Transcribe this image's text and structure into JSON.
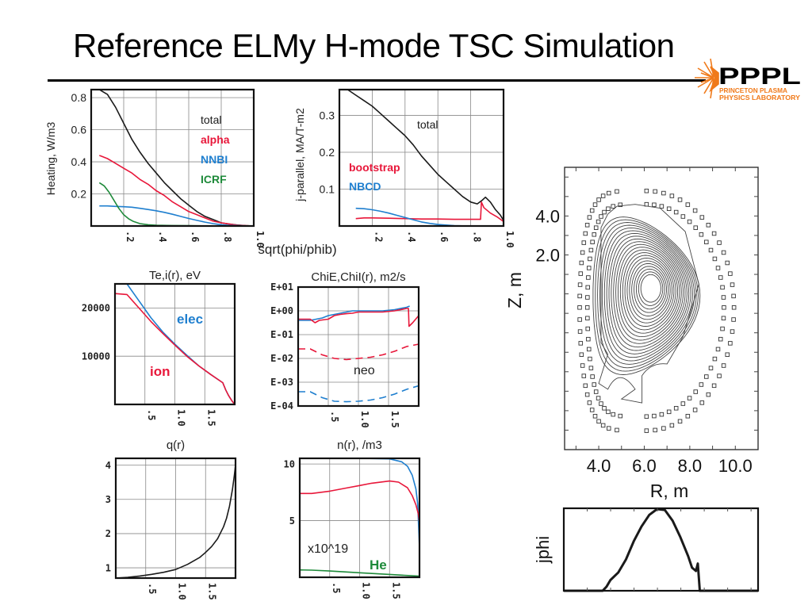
{
  "slide": {
    "title": "Reference ELMy H-mode TSC Simulation",
    "logo": {
      "main": "PPPL",
      "line1": "PRINCETON PLASMA",
      "line2": "PHYSICS LABORATORY",
      "accent": "#f07a1a"
    }
  },
  "colors": {
    "black": "#1a1a1a",
    "red": "#e8173a",
    "blue": "#1f7fcf",
    "green": "#1e8a3a"
  },
  "chart_data": [
    {
      "id": "heating",
      "type": "line",
      "title": "",
      "xlabel": "sqrt(phi/phib)",
      "ylabel": "Heating, W/m3",
      "xlim": [
        0,
        1.0
      ],
      "ylim": [
        0,
        0.85
      ],
      "xticks": [
        ".2",
        ".4",
        ".6",
        ".8",
        "1.0"
      ],
      "xtick_values": [
        0.2,
        0.4,
        0.6,
        0.8,
        1.0
      ],
      "yticks": [
        "0.2",
        "0.4",
        "0.6",
        "0.8"
      ],
      "ytick_values": [
        0.2,
        0.4,
        0.6,
        0.8
      ],
      "legend": [
        "total",
        "alpha",
        "NNBI",
        "ICRF"
      ],
      "series": [
        {
          "name": "total",
          "color": "black",
          "x": [
            0.05,
            0.1,
            0.15,
            0.2,
            0.25,
            0.3,
            0.35,
            0.4,
            0.45,
            0.5,
            0.55,
            0.6,
            0.65,
            0.7,
            0.75,
            0.8,
            0.85,
            0.9,
            0.95,
            1.0
          ],
          "y": [
            0.85,
            0.82,
            0.74,
            0.64,
            0.54,
            0.46,
            0.39,
            0.33,
            0.27,
            0.22,
            0.17,
            0.13,
            0.09,
            0.06,
            0.04,
            0.02,
            0.012,
            0.006,
            0.002,
            0.0
          ]
        },
        {
          "name": "alpha",
          "color": "red",
          "x": [
            0.05,
            0.1,
            0.15,
            0.2,
            0.25,
            0.3,
            0.35,
            0.4,
            0.45,
            0.5,
            0.55,
            0.6,
            0.65,
            0.7,
            0.75,
            0.8,
            0.85,
            0.9,
            0.95,
            1.0
          ],
          "y": [
            0.44,
            0.42,
            0.39,
            0.36,
            0.33,
            0.29,
            0.26,
            0.22,
            0.19,
            0.15,
            0.12,
            0.09,
            0.07,
            0.05,
            0.03,
            0.02,
            0.012,
            0.005,
            0.002,
            0.0
          ]
        },
        {
          "name": "NNBI",
          "color": "blue",
          "x": [
            0.05,
            0.1,
            0.15,
            0.2,
            0.25,
            0.3,
            0.35,
            0.4,
            0.45,
            0.5,
            0.55,
            0.6,
            0.65,
            0.7,
            0.75,
            0.8,
            0.85,
            0.9,
            0.95,
            1.0
          ],
          "y": [
            0.125,
            0.125,
            0.122,
            0.12,
            0.117,
            0.11,
            0.103,
            0.095,
            0.085,
            0.073,
            0.06,
            0.047,
            0.035,
            0.024,
            0.015,
            0.008,
            0.004,
            0.002,
            0.001,
            0.0
          ]
        },
        {
          "name": "ICRF",
          "color": "green",
          "x": [
            0.05,
            0.08,
            0.11,
            0.14,
            0.17,
            0.2,
            0.23,
            0.26,
            0.3,
            0.35,
            0.4,
            0.5,
            0.6,
            0.7,
            0.8,
            0.9,
            1.0
          ],
          "y": [
            0.27,
            0.25,
            0.21,
            0.16,
            0.11,
            0.07,
            0.045,
            0.028,
            0.015,
            0.008,
            0.005,
            0.003,
            0.002,
            0.001,
            0.0,
            0.0,
            0.0
          ]
        }
      ]
    },
    {
      "id": "jparallel",
      "type": "line",
      "title": "",
      "xlabel": "sqrt(phi/phib)",
      "ylabel": "j-parallel, MA/T-m2",
      "xlim": [
        0,
        1.0
      ],
      "ylim": [
        0,
        0.37
      ],
      "xticks": [
        ".2",
        ".4",
        ".6",
        ".8",
        "1.0"
      ],
      "xtick_values": [
        0.2,
        0.4,
        0.6,
        0.8,
        1.0
      ],
      "yticks": [
        "0.1",
        "0.2",
        "0.3"
      ],
      "ytick_values": [
        0.1,
        0.2,
        0.3
      ],
      "legend": [
        "total",
        "bootstrap",
        "NBCD"
      ],
      "series": [
        {
          "name": "total",
          "color": "black",
          "x": [
            0.05,
            0.1,
            0.15,
            0.2,
            0.25,
            0.3,
            0.35,
            0.4,
            0.45,
            0.5,
            0.55,
            0.6,
            0.65,
            0.7,
            0.75,
            0.8,
            0.84,
            0.87,
            0.89,
            0.92,
            0.95,
            0.98,
            1.0
          ],
          "y": [
            0.37,
            0.355,
            0.34,
            0.325,
            0.305,
            0.285,
            0.265,
            0.245,
            0.22,
            0.19,
            0.165,
            0.14,
            0.12,
            0.1,
            0.08,
            0.065,
            0.06,
            0.07,
            0.078,
            0.065,
            0.045,
            0.03,
            0.015
          ]
        },
        {
          "name": "bootstrap",
          "color": "red",
          "x": [
            0.1,
            0.15,
            0.2,
            0.3,
            0.4,
            0.5,
            0.6,
            0.7,
            0.8,
            0.86,
            0.865,
            0.88,
            0.92,
            0.96,
            1.0
          ],
          "y": [
            0.02,
            0.022,
            0.022,
            0.021,
            0.02,
            0.019,
            0.019,
            0.018,
            0.018,
            0.018,
            0.065,
            0.05,
            0.035,
            0.025,
            0.012
          ]
        },
        {
          "name": "NBCD",
          "color": "blue",
          "x": [
            0.1,
            0.15,
            0.2,
            0.25,
            0.3,
            0.35,
            0.4,
            0.45,
            0.5,
            0.55,
            0.6,
            0.7,
            0.8,
            0.9,
            1.0
          ],
          "y": [
            0.048,
            0.047,
            0.044,
            0.04,
            0.035,
            0.029,
            0.023,
            0.017,
            0.011,
            0.007,
            0.004,
            0.001,
            0.0,
            0.0,
            0.0
          ]
        }
      ]
    },
    {
      "id": "temperature",
      "type": "line",
      "title": "Te,i(r), eV",
      "xlabel": "",
      "ylabel": "",
      "xlim": [
        0,
        2.0
      ],
      "ylim": [
        0,
        25000
      ],
      "xticks": [
        ".5",
        "1.0",
        "1.5"
      ],
      "xtick_values": [
        0.5,
        1.0,
        1.5
      ],
      "yticks": [
        "10000",
        "20000"
      ],
      "ytick_values": [
        10000,
        20000
      ],
      "legend": [
        "elec",
        "ion"
      ],
      "series": [
        {
          "name": "elec",
          "color": "blue",
          "x": [
            0.2,
            0.4,
            0.6,
            0.8,
            1.0,
            1.2,
            1.4,
            1.6,
            1.8,
            1.85,
            1.9,
            1.95,
            2.0
          ],
          "y": [
            25000,
            21500,
            18000,
            15000,
            12500,
            10200,
            8000,
            6200,
            4500,
            3000,
            1800,
            800,
            0
          ]
        },
        {
          "name": "ion",
          "color": "red",
          "x": [
            0.0,
            0.2,
            0.4,
            0.6,
            0.8,
            1.0,
            1.2,
            1.4,
            1.6,
            1.8,
            1.85,
            1.9,
            1.95,
            2.0
          ],
          "y": [
            23000,
            22800,
            20000,
            17200,
            14700,
            12300,
            10000,
            8000,
            6200,
            4500,
            3000,
            1800,
            800,
            0
          ]
        }
      ]
    },
    {
      "id": "chi",
      "type": "line",
      "title": "ChiE,ChiI(r), m2/s",
      "xlabel": "",
      "ylabel": "",
      "yscale": "log",
      "xlim": [
        0,
        2.0
      ],
      "ylim": [
        -4,
        1
      ],
      "xticks": [
        ".5",
        "1.0",
        "1.5"
      ],
      "xtick_values": [
        0.5,
        1.0,
        1.5
      ],
      "yticks": [
        "E-04",
        "E-03",
        "E-02",
        "E-01",
        "E+00",
        "E+01"
      ],
      "ytick_values": [
        -4,
        -3,
        -2,
        -1,
        0,
        1
      ],
      "annotations": [
        "neo"
      ],
      "series": [
        {
          "name": "ChiE",
          "color": "blue",
          "style": "solid",
          "log10_y": true,
          "x": [
            0.0,
            0.2,
            0.3,
            0.4,
            0.5,
            0.6,
            0.7,
            0.8,
            0.9,
            1.0,
            1.2,
            1.4,
            1.6,
            1.8,
            1.85
          ],
          "y": [
            -0.4,
            -0.4,
            -0.35,
            -0.3,
            -0.2,
            -0.15,
            -0.1,
            -0.05,
            0.0,
            0.0,
            0.0,
            0.0,
            0.05,
            0.15,
            0.2
          ]
        },
        {
          "name": "ChiI",
          "color": "red",
          "style": "solid",
          "log10_y": true,
          "x": [
            0.0,
            0.2,
            0.28,
            0.35,
            0.5,
            0.6,
            0.7,
            0.8,
            0.9,
            1.0,
            1.2,
            1.4,
            1.6,
            1.8,
            1.83,
            1.84,
            1.9,
            2.0
          ],
          "y": [
            -0.35,
            -0.35,
            -0.5,
            -0.4,
            -0.35,
            -0.2,
            -0.15,
            -0.12,
            -0.1,
            -0.05,
            -0.05,
            -0.05,
            0.0,
            0.1,
            0.1,
            -0.65,
            -0.5,
            -0.2
          ]
        },
        {
          "name": "ChiI neo",
          "color": "red",
          "style": "dashed",
          "log10_y": true,
          "x": [
            0.0,
            0.2,
            0.4,
            0.6,
            0.8,
            1.0,
            1.2,
            1.4,
            1.6,
            1.8,
            2.0
          ],
          "y": [
            -1.6,
            -1.6,
            -1.85,
            -2.0,
            -2.05,
            -2.0,
            -1.95,
            -1.85,
            -1.7,
            -1.5,
            -1.4
          ]
        },
        {
          "name": "ChiE neo",
          "color": "blue",
          "style": "dashed",
          "log10_y": true,
          "x": [
            0.0,
            0.2,
            0.4,
            0.6,
            0.8,
            1.0,
            1.2,
            1.4,
            1.6,
            1.8,
            2.0
          ],
          "y": [
            -3.4,
            -3.4,
            -3.65,
            -3.8,
            -3.82,
            -3.8,
            -3.75,
            -3.65,
            -3.5,
            -3.3,
            -3.15
          ]
        }
      ]
    },
    {
      "id": "q",
      "type": "line",
      "title": "q(r)",
      "xlabel": "",
      "ylabel": "",
      "xlim": [
        0,
        2.0
      ],
      "ylim": [
        0.7,
        4.2
      ],
      "xticks": [
        ".5",
        "1.0",
        "1.5"
      ],
      "xtick_values": [
        0.5,
        1.0,
        1.5
      ],
      "yticks": [
        "1",
        "2",
        "3",
        "4"
      ],
      "ytick_values": [
        1,
        2,
        3,
        4
      ],
      "series": [
        {
          "name": "q",
          "color": "black",
          "x": [
            0.0,
            0.2,
            0.4,
            0.6,
            0.8,
            1.0,
            1.2,
            1.4,
            1.5,
            1.6,
            1.7,
            1.8,
            1.85,
            1.9,
            1.95,
            1.98,
            2.0
          ],
          "y": [
            0.7,
            0.72,
            0.76,
            0.81,
            0.87,
            0.95,
            1.1,
            1.3,
            1.45,
            1.62,
            1.85,
            2.2,
            2.45,
            2.8,
            3.3,
            3.7,
            4.0
          ]
        }
      ]
    },
    {
      "id": "density",
      "type": "line",
      "title": "n(r), /m3",
      "xlabel": "",
      "ylabel": "",
      "xlim": [
        0,
        2.0
      ],
      "ylim": [
        0,
        10.5
      ],
      "xticks": [
        ".5",
        "1.0",
        "1.5"
      ],
      "xtick_values": [
        0.5,
        1.0,
        1.5
      ],
      "yticks": [
        "5",
        "10"
      ],
      "ytick_values": [
        5,
        10
      ],
      "annotations": [
        "x10^19",
        "He"
      ],
      "series": [
        {
          "name": "ne",
          "color": "blue",
          "x": [
            0.0,
            0.5,
            1.0,
            1.5,
            1.7,
            1.8,
            1.88,
            1.94,
            1.97,
            2.0
          ],
          "y": [
            10.5,
            10.5,
            10.5,
            10.45,
            10.2,
            9.8,
            9.0,
            7.8,
            6.5,
            2.6
          ]
        },
        {
          "name": "ni",
          "color": "red",
          "x": [
            0.0,
            0.2,
            0.5,
            0.8,
            1.0,
            1.2,
            1.5,
            1.65,
            1.8,
            1.88,
            1.94,
            1.98,
            2.0
          ],
          "y": [
            7.4,
            7.4,
            7.6,
            7.9,
            8.1,
            8.3,
            8.5,
            8.4,
            7.9,
            7.2,
            6.4,
            5.6,
            4.8
          ]
        },
        {
          "name": "He",
          "color": "green",
          "x": [
            0.0,
            0.2,
            0.5,
            1.0,
            1.5,
            2.0
          ],
          "y": [
            0.65,
            0.63,
            0.55,
            0.4,
            0.25,
            0.1
          ]
        }
      ]
    },
    {
      "id": "equilibrium",
      "type": "contour",
      "title": "",
      "xlabel": "R, m",
      "ylabel": "Z, m",
      "xticks": [
        "4.0",
        "6.0",
        "8.0",
        "10.0"
      ],
      "xtick_values": [
        4,
        6,
        8,
        10
      ],
      "yticks": [
        "2.0",
        "4.0"
      ],
      "ytick_values": [
        2,
        4
      ],
      "xlim": [
        2.5,
        11.0
      ],
      "ylim": [
        -8.0,
        6.5
      ],
      "magnetic_axis": [
        6.3,
        0.3
      ],
      "flux_surface_count": 22
    },
    {
      "id": "jphi",
      "type": "line",
      "title": "",
      "xlabel": "",
      "ylabel": "jphi",
      "xlim": [
        0,
        1.0
      ],
      "ylim": [
        0,
        1.0
      ],
      "series": [
        {
          "name": "jphi",
          "color": "black",
          "x": [
            0.0,
            0.2,
            0.22,
            0.24,
            0.28,
            0.32,
            0.36,
            0.4,
            0.44,
            0.48,
            0.52,
            0.56,
            0.6,
            0.64,
            0.66,
            0.68,
            0.69,
            0.7,
            0.72,
            1.0
          ],
          "y": [
            0.0,
            0.0,
            0.05,
            0.13,
            0.22,
            0.38,
            0.6,
            0.78,
            0.92,
            0.99,
            0.98,
            0.85,
            0.65,
            0.42,
            0.28,
            0.24,
            0.33,
            0.0,
            0.0,
            0.0
          ]
        }
      ]
    }
  ]
}
